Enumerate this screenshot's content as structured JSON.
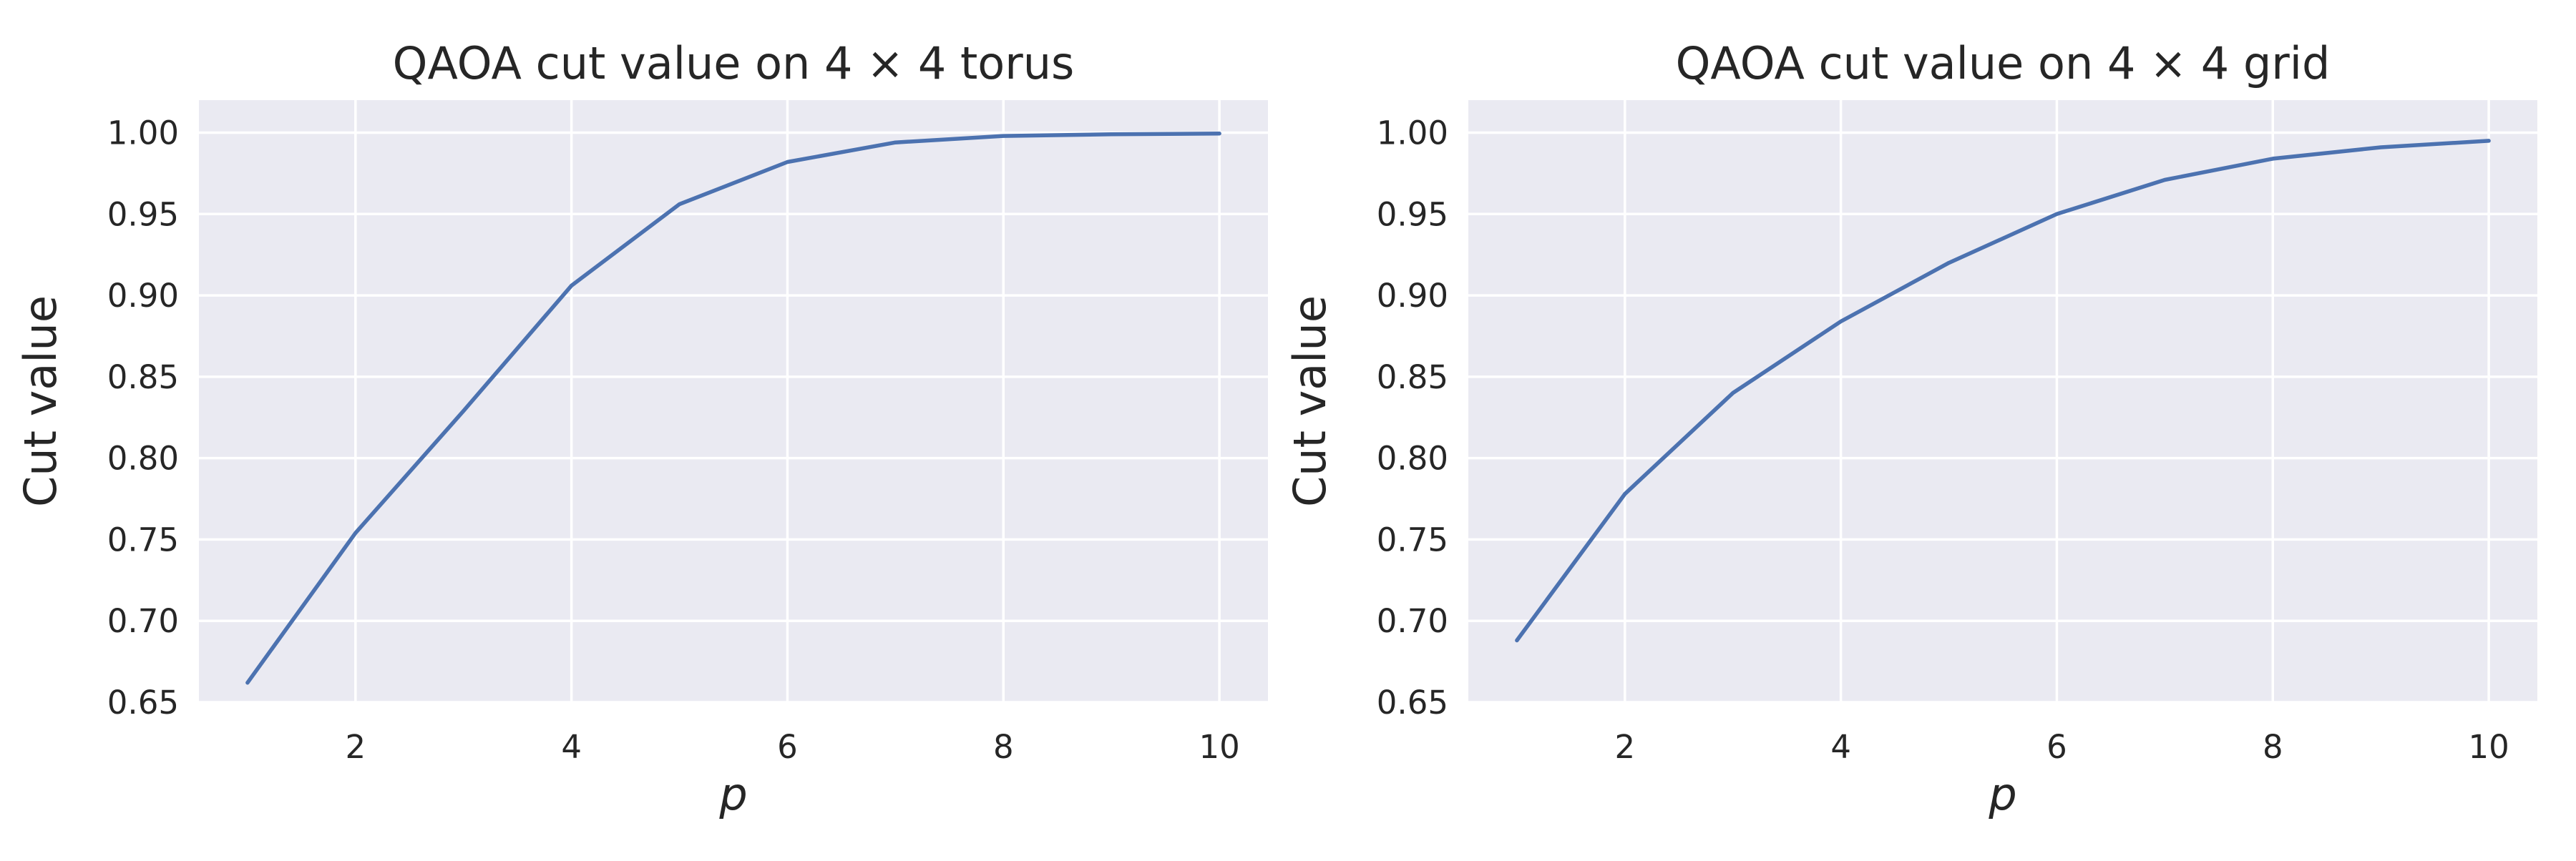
{
  "figure": {
    "background": "#ffffff",
    "plot_background": "#eaeaf2",
    "grid_color": "#ffffff",
    "line_color": "#4c72b0",
    "text_color": "#262626"
  },
  "chart_data": [
    {
      "type": "line",
      "title": "QAOA cut value on 4 × 4 torus",
      "xlabel": "p",
      "ylabel": "Cut value",
      "xlim": [
        0.55,
        10.45
      ],
      "ylim": [
        0.65,
        1.02
      ],
      "xticks": [
        2,
        4,
        6,
        8,
        10
      ],
      "xtick_labels": [
        "2",
        "4",
        "6",
        "8",
        "10"
      ],
      "yticks": [
        0.65,
        0.7,
        0.75,
        0.8,
        0.85,
        0.9,
        0.95,
        1.0
      ],
      "ytick_labels": [
        "0.65",
        "0.70",
        "0.75",
        "0.80",
        "0.85",
        "0.90",
        "0.95",
        "1.00"
      ],
      "grid": true,
      "series": [
        {
          "x": [
            1,
            2,
            3,
            4,
            5,
            6,
            7,
            8,
            9,
            10
          ],
          "values": [
            0.662,
            0.754,
            0.829,
            0.906,
            0.956,
            0.982,
            0.994,
            0.998,
            0.999,
            0.9995
          ]
        }
      ]
    },
    {
      "type": "line",
      "title": "QAOA cut value on 4 × 4 grid",
      "xlabel": "p",
      "ylabel": "Cut value",
      "xlim": [
        0.55,
        10.45
      ],
      "ylim": [
        0.65,
        1.02
      ],
      "xticks": [
        2,
        4,
        6,
        8,
        10
      ],
      "xtick_labels": [
        "2",
        "4",
        "6",
        "8",
        "10"
      ],
      "yticks": [
        0.65,
        0.7,
        0.75,
        0.8,
        0.85,
        0.9,
        0.95,
        1.0
      ],
      "ytick_labels": [
        "0.65",
        "0.70",
        "0.75",
        "0.80",
        "0.85",
        "0.90",
        "0.95",
        "1.00"
      ],
      "grid": true,
      "series": [
        {
          "x": [
            1,
            2,
            3,
            4,
            5,
            6,
            7,
            8,
            9,
            10
          ],
          "values": [
            0.688,
            0.778,
            0.84,
            0.884,
            0.92,
            0.95,
            0.971,
            0.984,
            0.991,
            0.995
          ]
        }
      ]
    }
  ]
}
